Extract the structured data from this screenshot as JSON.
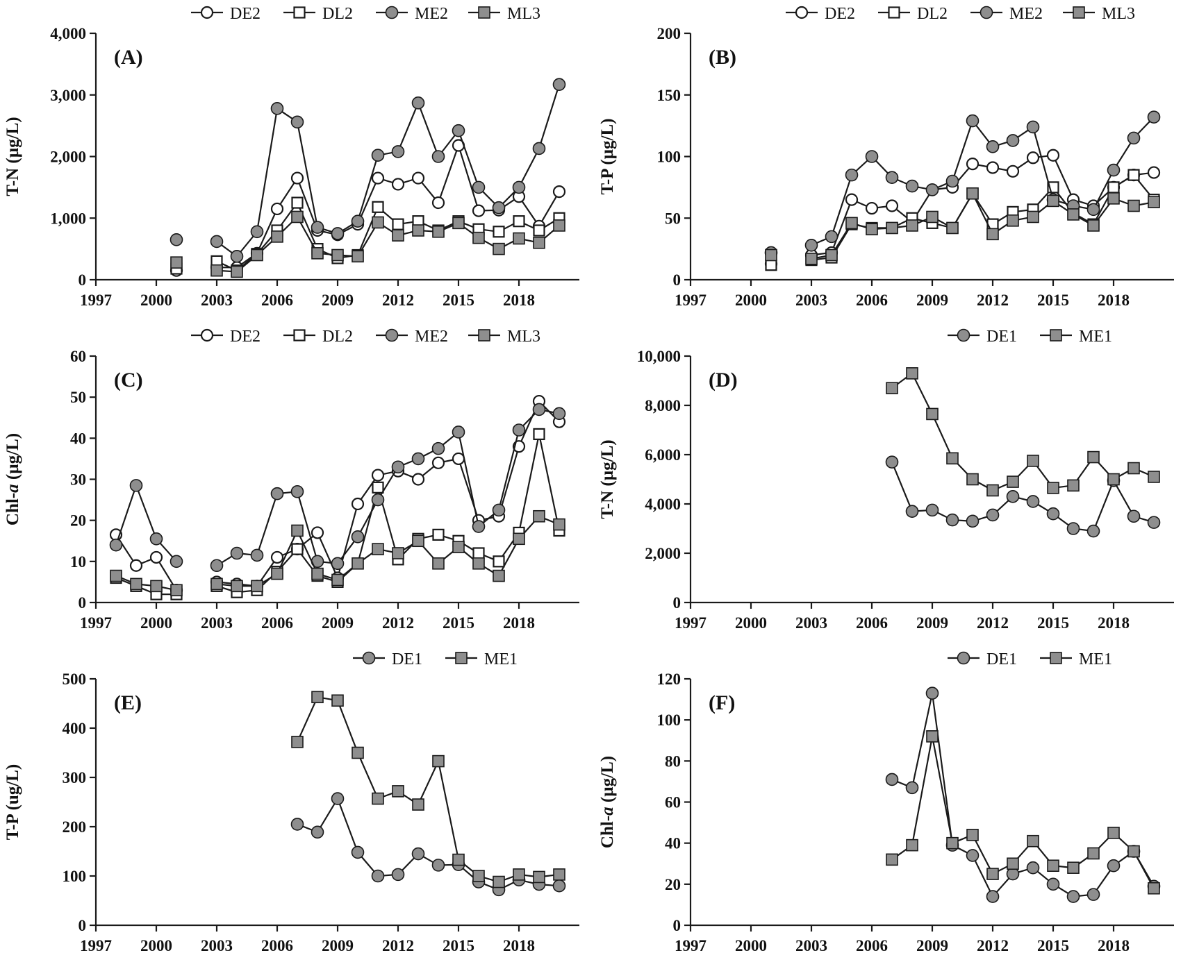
{
  "figure": {
    "background": "#ffffff",
    "ink": "#1a1a1a",
    "marker_fill": "#8e8e8e"
  },
  "chart_data": [
    {
      "id": "A",
      "type": "line",
      "panel_label": "(A)",
      "title": "",
      "xlabel": "",
      "ylabel": "T-N (µg/L)",
      "ylim": [
        0,
        4000
      ],
      "ytick": 1000,
      "xlim": [
        1997,
        2021
      ],
      "xticks": [
        1997,
        2000,
        2003,
        2006,
        2009,
        2012,
        2015,
        2018
      ],
      "grid": false,
      "legend_align": "center",
      "years": [
        2001,
        2003,
        2004,
        2005,
        2006,
        2007,
        2008,
        2009,
        2010,
        2011,
        2012,
        2013,
        2014,
        2015,
        2016,
        2017,
        2018,
        2019,
        2020
      ],
      "series": [
        {
          "name": "DE2",
          "marker": "circle-open",
          "values": [
            150,
            200,
            200,
            430,
            1150,
            1650,
            800,
            730,
            900,
            1650,
            1550,
            1650,
            1250,
            2180,
            1120,
            1130,
            1350,
            870,
            1430
          ]
        },
        {
          "name": "DL2",
          "marker": "square-open",
          "values": [
            180,
            300,
            150,
            420,
            800,
            1250,
            500,
            350,
            400,
            1180,
            900,
            950,
            800,
            950,
            820,
            780,
            950,
            800,
            1000
          ]
        },
        {
          "name": "ME2",
          "marker": "circle-filled",
          "values": [
            650,
            620,
            380,
            780,
            2780,
            2560,
            850,
            750,
            950,
            2020,
            2080,
            2870,
            2000,
            2420,
            1500,
            1170,
            1500,
            2130,
            3170
          ]
        },
        {
          "name": "ML3",
          "marker": "square-filled",
          "values": [
            280,
            150,
            130,
            400,
            700,
            1020,
            430,
            400,
            380,
            930,
            720,
            800,
            780,
            920,
            680,
            500,
            670,
            600,
            880
          ]
        }
      ]
    },
    {
      "id": "B",
      "type": "line",
      "panel_label": "(B)",
      "title": "",
      "xlabel": "",
      "ylabel": "T-P (µg/L)",
      "ylim": [
        0,
        200
      ],
      "ytick": 50,
      "xlim": [
        1997,
        2021
      ],
      "xticks": [
        1997,
        2000,
        2003,
        2006,
        2009,
        2012,
        2015,
        2018
      ],
      "grid": false,
      "legend_align": "center",
      "years": [
        2001,
        2003,
        2004,
        2005,
        2006,
        2007,
        2008,
        2009,
        2010,
        2011,
        2012,
        2013,
        2014,
        2015,
        2016,
        2017,
        2018,
        2019,
        2020
      ],
      "series": [
        {
          "name": "DE2",
          "marker": "circle-open",
          "values": [
            13,
            20,
            22,
            65,
            58,
            60,
            47,
            73,
            75,
            94,
            91,
            88,
            99,
            101,
            65,
            60,
            75,
            85,
            87
          ]
        },
        {
          "name": "DL2",
          "marker": "square-open",
          "values": [
            12,
            16,
            18,
            45,
            42,
            42,
            50,
            46,
            42,
            70,
            45,
            55,
            57,
            75,
            54,
            45,
            75,
            85,
            65
          ]
        },
        {
          "name": "ME2",
          "marker": "circle-filled",
          "values": [
            22,
            28,
            35,
            85,
            100,
            83,
            76,
            73,
            80,
            129,
            108,
            113,
            124,
            65,
            60,
            57,
            89,
            115,
            132
          ]
        },
        {
          "name": "ML3",
          "marker": "square-filled",
          "values": [
            20,
            17,
            20,
            46,
            41,
            42,
            44,
            51,
            42,
            70,
            37,
            48,
            51,
            64,
            53,
            44,
            66,
            60,
            63
          ]
        }
      ]
    },
    {
      "id": "C",
      "type": "line",
      "panel_label": "(C)",
      "title": "",
      "xlabel": "",
      "ylabel": "Chl-a (µg/L)",
      "ylim": [
        0,
        60
      ],
      "ytick": 10,
      "xlim": [
        1997,
        2021
      ],
      "xticks": [
        1997,
        2000,
        2003,
        2006,
        2009,
        2012,
        2015,
        2018
      ],
      "grid": false,
      "legend_align": "center",
      "years": [
        1998,
        1999,
        2000,
        2001,
        2003,
        2004,
        2005,
        2006,
        2007,
        2008,
        2009,
        2010,
        2011,
        2012,
        2013,
        2014,
        2015,
        2016,
        2017,
        2018,
        2019,
        2020
      ],
      "series": [
        {
          "name": "DE2",
          "marker": "circle-open",
          "values": [
            16.5,
            9,
            11,
            3,
            5,
            4.5,
            4,
            11,
            13,
            17,
            6,
            24,
            31,
            32,
            30,
            34,
            35,
            20,
            21,
            38,
            49,
            44
          ]
        },
        {
          "name": "DL2",
          "marker": "square-open",
          "values": [
            6,
            4,
            2,
            2,
            4,
            2.5,
            3,
            7.5,
            13,
            6.5,
            5,
            9.5,
            28,
            10.5,
            15.5,
            16.5,
            15,
            12,
            10,
            17,
            41,
            17.5
          ]
        },
        {
          "name": "ME2",
          "marker": "circle-filled",
          "values": [
            14,
            28.5,
            15.5,
            10,
            9,
            12,
            11.5,
            26.5,
            27,
            10,
            9.5,
            16,
            25,
            33,
            35,
            37.5,
            41.5,
            18.5,
            22.5,
            42,
            47,
            46
          ]
        },
        {
          "name": "ML3",
          "marker": "square-filled",
          "values": [
            6.5,
            4.5,
            4,
            3,
            4.5,
            4,
            4,
            7,
            17.5,
            7,
            5.5,
            9.5,
            13,
            12,
            15,
            9.5,
            13.5,
            9.5,
            6.5,
            15.5,
            21,
            19
          ]
        }
      ]
    },
    {
      "id": "D",
      "type": "line",
      "panel_label": "(D)",
      "title": "",
      "xlabel": "",
      "ylabel": "T-N (µg/L)",
      "ylim": [
        0,
        10000
      ],
      "ytick": 2000,
      "xlim": [
        1997,
        2021
      ],
      "xticks": [
        1997,
        2000,
        2003,
        2006,
        2009,
        2012,
        2015,
        2018
      ],
      "grid": false,
      "legend_align": "right",
      "years": [
        2007,
        2008,
        2009,
        2010,
        2011,
        2012,
        2013,
        2014,
        2015,
        2016,
        2017,
        2018,
        2019,
        2020
      ],
      "series": [
        {
          "name": "DE1",
          "marker": "circle-filled",
          "values": [
            5700,
            3700,
            3750,
            3350,
            3300,
            3550,
            4300,
            4100,
            3600,
            3000,
            2900,
            4950,
            3500,
            3250
          ]
        },
        {
          "name": "ME1",
          "marker": "square-filled",
          "values": [
            8700,
            9300,
            7650,
            5850,
            5000,
            4550,
            4900,
            5750,
            4650,
            4750,
            5900,
            5000,
            5450,
            5100
          ]
        }
      ]
    },
    {
      "id": "E",
      "type": "line",
      "panel_label": "(E)",
      "title": "",
      "xlabel": "",
      "ylabel": "T-P (ug/L)",
      "ylim": [
        0,
        500
      ],
      "ytick": 100,
      "xlim": [
        1997,
        2021
      ],
      "xticks": [
        1997,
        2000,
        2003,
        2006,
        2009,
        2012,
        2015,
        2018
      ],
      "grid": false,
      "legend_align": "right",
      "years": [
        2007,
        2008,
        2009,
        2010,
        2011,
        2012,
        2013,
        2014,
        2015,
        2016,
        2017,
        2018,
        2019,
        2020
      ],
      "series": [
        {
          "name": "DE1",
          "marker": "circle-filled",
          "values": [
            205,
            189,
            257,
            148,
            100,
            103,
            145,
            122,
            123,
            88,
            72,
            92,
            83,
            80
          ]
        },
        {
          "name": "ME1",
          "marker": "square-filled",
          "values": [
            372,
            463,
            456,
            350,
            257,
            272,
            245,
            333,
            133,
            100,
            88,
            103,
            98,
            103
          ]
        }
      ]
    },
    {
      "id": "F",
      "type": "line",
      "panel_label": "(F)",
      "title": "",
      "xlabel": "",
      "ylabel": "Chl-a (µg/L)",
      "ylim": [
        0,
        120
      ],
      "ytick": 20,
      "xlim": [
        1997,
        2021
      ],
      "xticks": [
        1997,
        2000,
        2003,
        2006,
        2009,
        2012,
        2015,
        2018
      ],
      "grid": false,
      "legend_align": "right",
      "years": [
        2007,
        2008,
        2009,
        2010,
        2011,
        2012,
        2013,
        2014,
        2015,
        2016,
        2017,
        2018,
        2019,
        2020
      ],
      "series": [
        {
          "name": "DE1",
          "marker": "circle-filled",
          "values": [
            71,
            67,
            113,
            39,
            34,
            14,
            25,
            28,
            20,
            14,
            15,
            29,
            36,
            19
          ]
        },
        {
          "name": "ME1",
          "marker": "square-filled",
          "values": [
            32,
            39,
            92,
            40,
            44,
            25,
            30,
            41,
            29,
            28,
            35,
            45,
            36,
            18
          ]
        }
      ]
    }
  ]
}
